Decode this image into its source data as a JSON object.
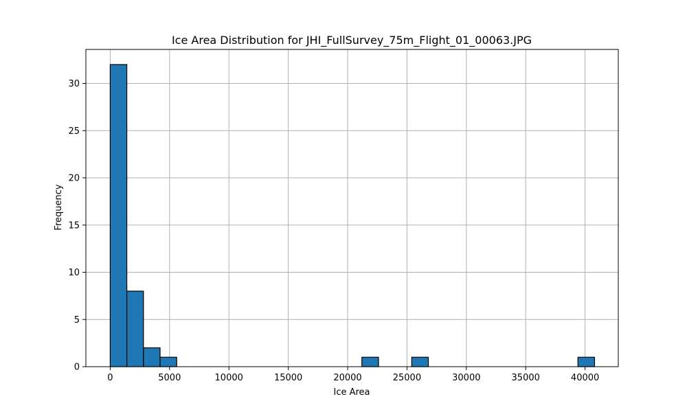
{
  "chart_data": {
    "type": "bar",
    "title": "Ice Area Distribution for JHI_FullSurvey_75m_Flight_01_00063.JPG",
    "xlabel": "Ice Area",
    "ylabel": "Frequency",
    "xlim": [
      -2050,
      42800
    ],
    "ylim": [
      0,
      33.6
    ],
    "xticks": [
      0,
      5000,
      10000,
      15000,
      20000,
      25000,
      30000,
      35000,
      40000
    ],
    "yticks": [
      0,
      5,
      10,
      15,
      20,
      25,
      30
    ],
    "grid": true,
    "bin_width": 1400,
    "bins": [
      {
        "start": 0,
        "count": 32
      },
      {
        "start": 1400,
        "count": 8
      },
      {
        "start": 2800,
        "count": 2
      },
      {
        "start": 4200,
        "count": 1
      },
      {
        "start": 21200,
        "count": 1
      },
      {
        "start": 25400,
        "count": 1
      },
      {
        "start": 39400,
        "count": 1
      }
    ],
    "colors": {
      "bar_fill": "#1f77b4",
      "bar_edge": "#000000",
      "grid": "#b0b0b0",
      "axis": "#000000"
    }
  }
}
